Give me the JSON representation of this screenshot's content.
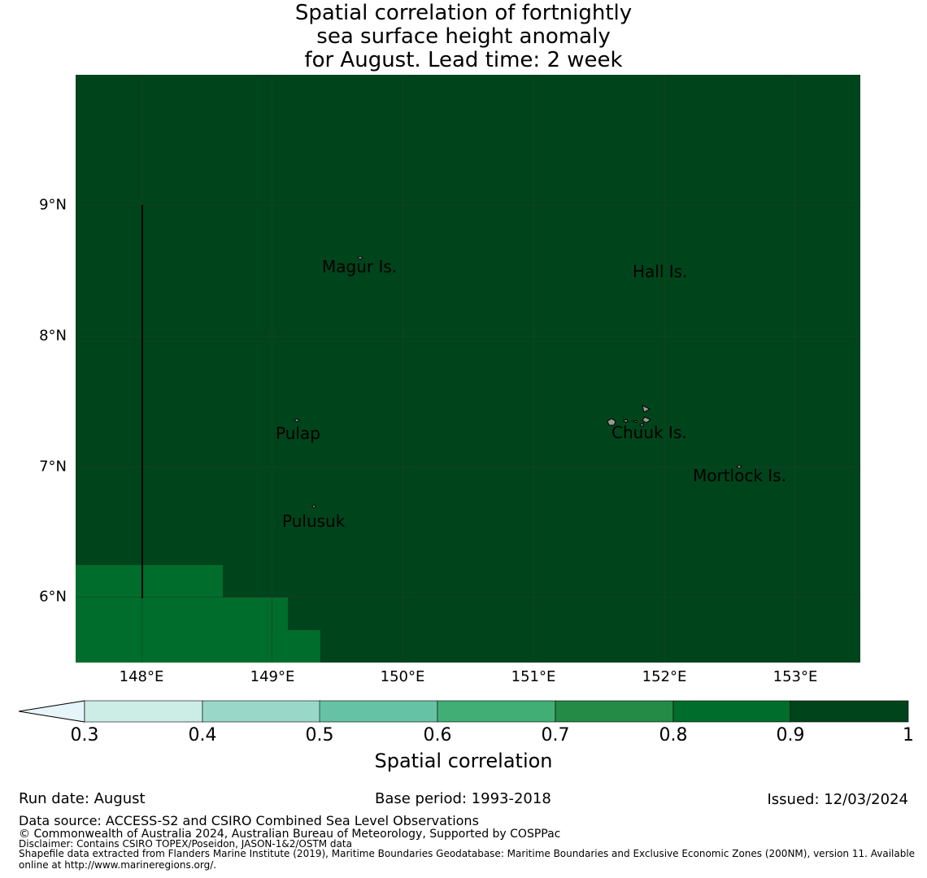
{
  "title": {
    "line1": "Spatial correlation of fortnightly",
    "line2": "sea surface height anomaly",
    "line3": "for August. Lead time: 2 week"
  },
  "map": {
    "background_color": "#00441b",
    "secondary_color": "#006d2c",
    "y_ticks": [
      "9°N",
      "8°N",
      "7°N",
      "6°N"
    ],
    "x_ticks": [
      "148°E",
      "149°E",
      "150°E",
      "151°E",
      "152°E",
      "153°E"
    ],
    "places": {
      "magur": "Magur Is.",
      "hall": "Hall Is.",
      "pulap": "Pulap",
      "chuuk": "Chuuk Is.",
      "mortlock": "Mortlock Is.",
      "pulusuk": "Pulusuk"
    }
  },
  "colorbar": {
    "colors": [
      "#e5f5f9",
      "#ccece6",
      "#99d8c9",
      "#66c2a4",
      "#41ae76",
      "#238b45",
      "#006d2c",
      "#00441b"
    ],
    "ticks": [
      "0.3",
      "0.4",
      "0.5",
      "0.6",
      "0.7",
      "0.8",
      "0.9",
      "1"
    ],
    "label": "Spatial correlation"
  },
  "footer": {
    "run_date": "Run date: August",
    "base_period": "Base period: 1993-2018",
    "issued": "Issued: 12/03/2024",
    "data_source": "Data source: ACCESS-S2 and CSIRO Combined Sea Level Observations",
    "copyright": "© Commonwealth of Australia 2024, Australian Bureau of Meteorology, Supported by COSPPac",
    "disclaimer": "Disclaimer: Contains CSIRO TOPEX/Poseidon, JASON-1&2/OSTM data",
    "shapefile": "Shapefile data extracted from Flanders Marine Institute (2019), Maritime Boundaries Geodatabase: Maritime Boundaries and Exclusive Economic Zones (200NM), version 11. Available online at http://www.marineregions.org/."
  }
}
